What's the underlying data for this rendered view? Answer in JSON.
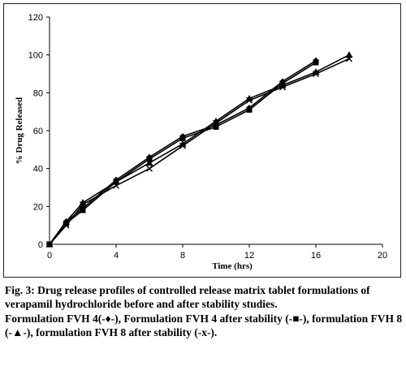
{
  "caption": {
    "figure_text": "Fig. 3: Drug release profiles of controlled release matrix tablet formulations of verapamil hydrochloride before and after stability studies.",
    "legend_text": "Formulation FVH 4(-♦-), Formulation FVH 4 after stability (-■-), formulation FVH 8 (-▲-), formulation FVH 8 after stability (-x-)."
  },
  "chart_data": {
    "type": "line",
    "title": "",
    "xlabel": "Time (hrs)",
    "ylabel": "% Drug Released",
    "xlim": [
      0,
      20
    ],
    "ylim": [
      0,
      120
    ],
    "xticks": [
      0,
      4,
      8,
      12,
      16,
      20
    ],
    "yticks": [
      0,
      20,
      40,
      60,
      80,
      100,
      120
    ],
    "grid": false,
    "legend": "none",
    "series": [
      {
        "marker": "diamond",
        "x": [
          0,
          1,
          2,
          4,
          6,
          8,
          10,
          12,
          14,
          16
        ],
        "y": [
          0,
          12,
          19,
          34,
          46,
          57,
          63,
          72,
          86,
          97
        ]
      },
      {
        "marker": "square",
        "x": [
          0,
          1,
          2,
          4,
          6,
          8,
          10,
          12,
          14,
          16
        ],
        "y": [
          0,
          11,
          18,
          33,
          45,
          56,
          62,
          71,
          85,
          96
        ]
      },
      {
        "marker": "triangle",
        "x": [
          0,
          1,
          2,
          4,
          6,
          8,
          10,
          12,
          14,
          16,
          18
        ],
        "y": [
          0,
          12,
          22,
          33,
          43,
          53,
          65,
          77,
          84,
          91,
          100
        ]
      },
      {
        "marker": "x",
        "x": [
          0,
          1,
          2,
          4,
          6,
          8,
          10,
          12,
          14,
          16,
          18
        ],
        "y": [
          0,
          10,
          21,
          31,
          40,
          52,
          64,
          76,
          83,
          90,
          98
        ]
      }
    ]
  }
}
